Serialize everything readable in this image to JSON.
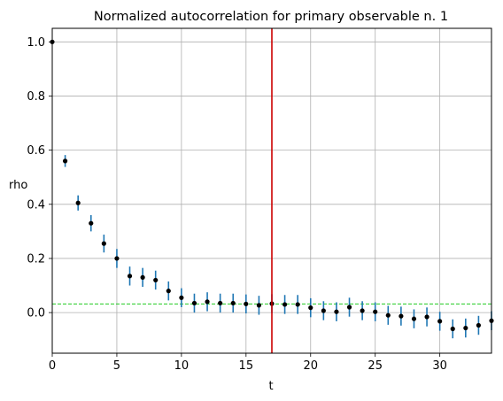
{
  "chart_data": {
    "type": "scatter",
    "title": "Normalized autocorrelation for primary observable n. 1",
    "xlabel": "t",
    "ylabel": "rho",
    "xlim": [
      0,
      34
    ],
    "ylim": [
      -0.15,
      1.05
    ],
    "xticks": [
      "0",
      "5",
      "10",
      "15",
      "20",
      "25",
      "30"
    ],
    "yticks": [
      "0.0",
      "0.2",
      "0.4",
      "0.6",
      "0.8",
      "1.0"
    ],
    "grid": true,
    "series": [
      {
        "x": [
          0,
          1,
          2,
          3,
          4,
          5,
          6,
          7,
          8,
          9,
          10,
          11,
          12,
          13,
          14,
          15,
          16,
          17,
          18,
          19,
          20,
          21,
          22,
          23,
          24,
          25,
          26,
          27,
          28,
          29,
          30,
          31,
          32,
          33,
          34
        ],
        "y": [
          1.0,
          0.56,
          0.405,
          0.33,
          0.255,
          0.2,
          0.135,
          0.13,
          0.12,
          0.08,
          0.055,
          0.035,
          0.04,
          0.035,
          0.035,
          0.032,
          0.027,
          0.033,
          0.03,
          0.03,
          0.018,
          0.007,
          0.003,
          0.02,
          0.007,
          0.003,
          -0.01,
          -0.013,
          -0.023,
          -0.016,
          -0.032,
          -0.06,
          -0.057,
          -0.047,
          -0.03
        ],
        "err": [
          0.0,
          0.022,
          0.028,
          0.03,
          0.033,
          0.035,
          0.035,
          0.035,
          0.035,
          0.035,
          0.035,
          0.035,
          0.035,
          0.035,
          0.035,
          0.035,
          0.035,
          0.035,
          0.035,
          0.035,
          0.035,
          0.035,
          0.035,
          0.035,
          0.035,
          0.035,
          0.035,
          0.035,
          0.035,
          0.035,
          0.035,
          0.035,
          0.035,
          0.035,
          0.035
        ],
        "point_color": "#000000",
        "errorbar_color": "#1f77b4"
      }
    ],
    "window_t": 17,
    "window_color": "#cc0000",
    "reference_level": 0.032,
    "reference_color": "#22cc22"
  }
}
